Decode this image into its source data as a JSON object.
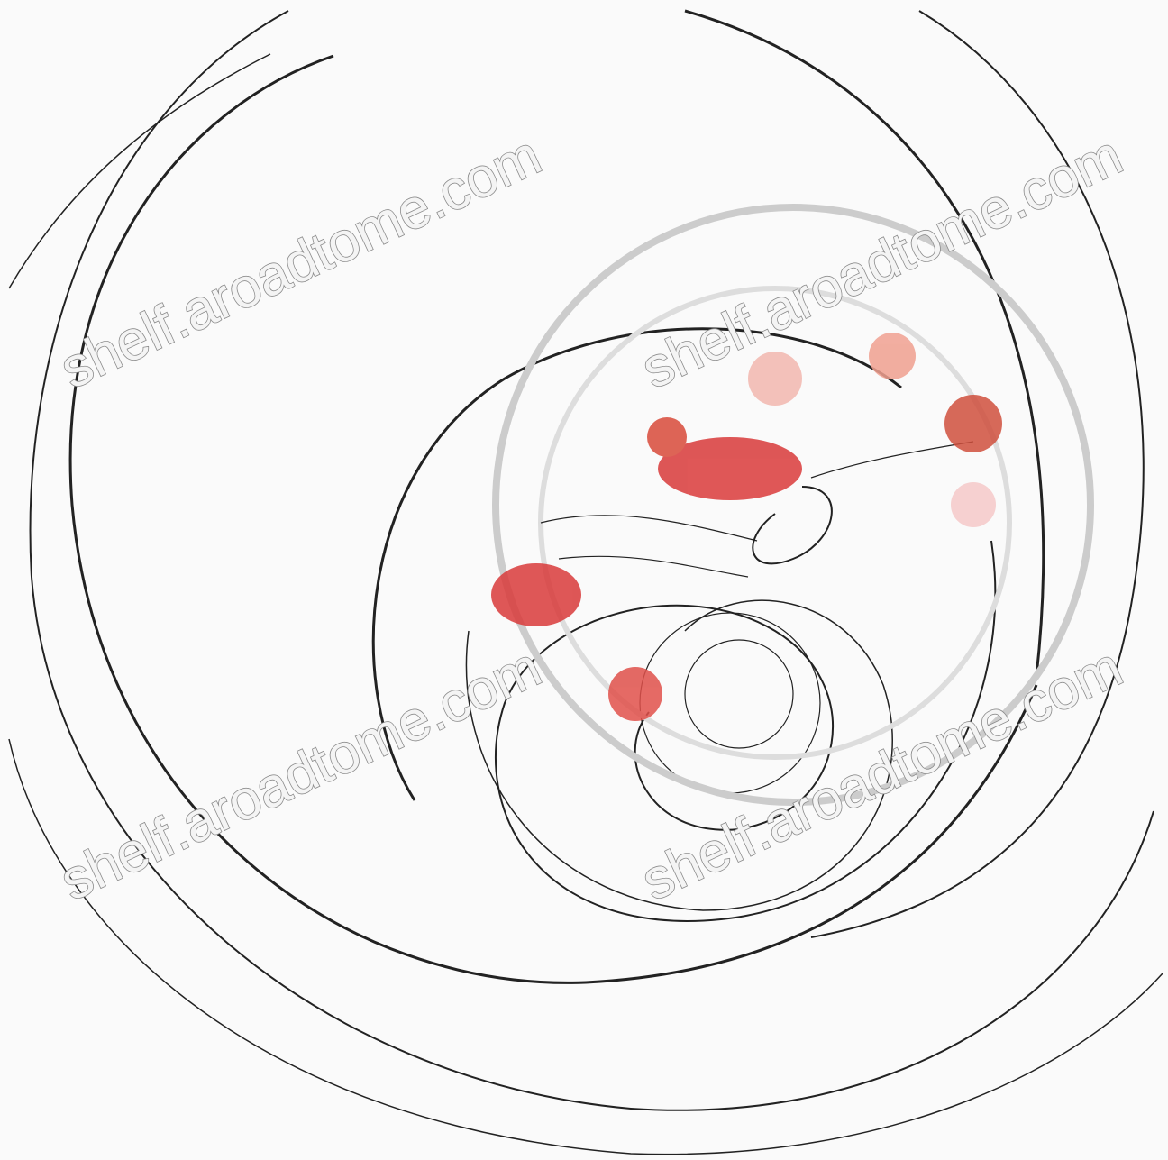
{
  "watermarks": [
    "shelf.aroadtome.com",
    "shelf.aroadtome.com",
    "shelf.aroadtome.com",
    "shelf.aroadtome.com"
  ]
}
